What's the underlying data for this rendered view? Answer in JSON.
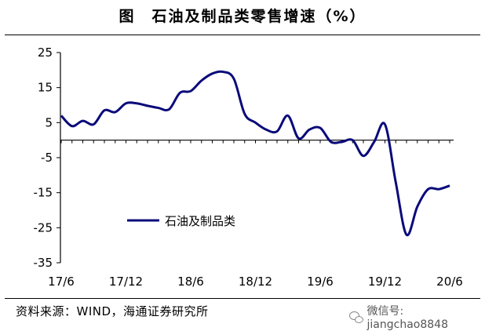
{
  "title": "图　石油及制品类零售增速（%）",
  "source": "资料来源：WIND，海通证券研究所",
  "watermark": {
    "icon": "wechat-icon",
    "text": "微信号: jiangchao8848"
  },
  "colors": {
    "series": "#0a0a7a",
    "axis": "#000000"
  },
  "chart_data": {
    "type": "line",
    "title": "石油及制品类零售增速（%）",
    "xlabel": "",
    "ylabel": "",
    "ylim": [
      -35,
      25
    ],
    "yticks": [
      25,
      15,
      5,
      -5,
      -15,
      -25,
      -35
    ],
    "x_tick_labels": [
      "17/6",
      "17/12",
      "18/6",
      "18/12",
      "19/6",
      "19/12",
      "20/6"
    ],
    "grid": false,
    "legend_placement": "lower-left-inside",
    "series": [
      {
        "name": "石油及制品类",
        "x": [
          "17/6",
          "17/7",
          "17/8",
          "17/9",
          "17/10",
          "17/11",
          "17/12",
          "18/1",
          "18/2",
          "18/3",
          "18/4",
          "18/5",
          "18/6",
          "18/7",
          "18/8",
          "18/9",
          "18/10",
          "18/11",
          "18/12",
          "19/1",
          "19/2",
          "19/3",
          "19/4",
          "19/5",
          "19/6",
          "19/7",
          "19/8",
          "19/9",
          "19/10",
          "19/11",
          "19/12",
          "20/1",
          "20/2",
          "20/3",
          "20/4",
          "20/5",
          "20/6"
        ],
        "values": [
          7.0,
          4.0,
          5.5,
          4.5,
          8.5,
          8.0,
          10.5,
          10.5,
          9.8,
          9.2,
          8.8,
          13.5,
          14.0,
          17.0,
          19.0,
          19.5,
          17.5,
          7.5,
          5.0,
          3.0,
          2.5,
          7.0,
          0.5,
          3.0,
          3.5,
          -0.5,
          -0.5,
          0.0,
          -4.5,
          -0.5,
          4.5,
          -12.0,
          -27.0,
          -19.0,
          -14.0,
          -14.0,
          -13.0
        ]
      }
    ]
  }
}
